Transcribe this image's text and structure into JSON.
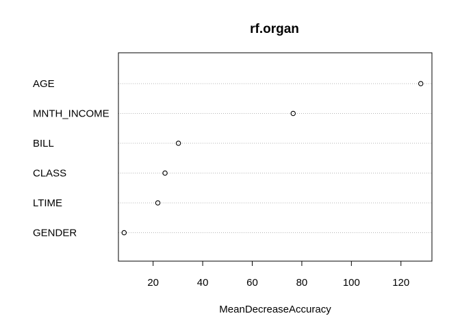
{
  "chart_data": {
    "type": "scatter",
    "variant": "dotchart",
    "title": "rf.organ",
    "xlabel": "MeanDecreaseAccuracy",
    "ylabel": "",
    "categories": [
      "AGE",
      "MNTH_INCOME",
      "BILL",
      "CLASS",
      "LTIME",
      "GENDER"
    ],
    "values": [
      128.0,
      76.5,
      30.2,
      24.8,
      21.9,
      8.3
    ],
    "xlim": [
      6.0,
      132.5
    ],
    "xticks": [
      20,
      40,
      60,
      80,
      100,
      120
    ],
    "grid": "dotted horizontal guide per category",
    "legend": "none",
    "colors": {
      "point": "#000000",
      "guide": "#b3b3b3",
      "frame": "#000000"
    }
  }
}
